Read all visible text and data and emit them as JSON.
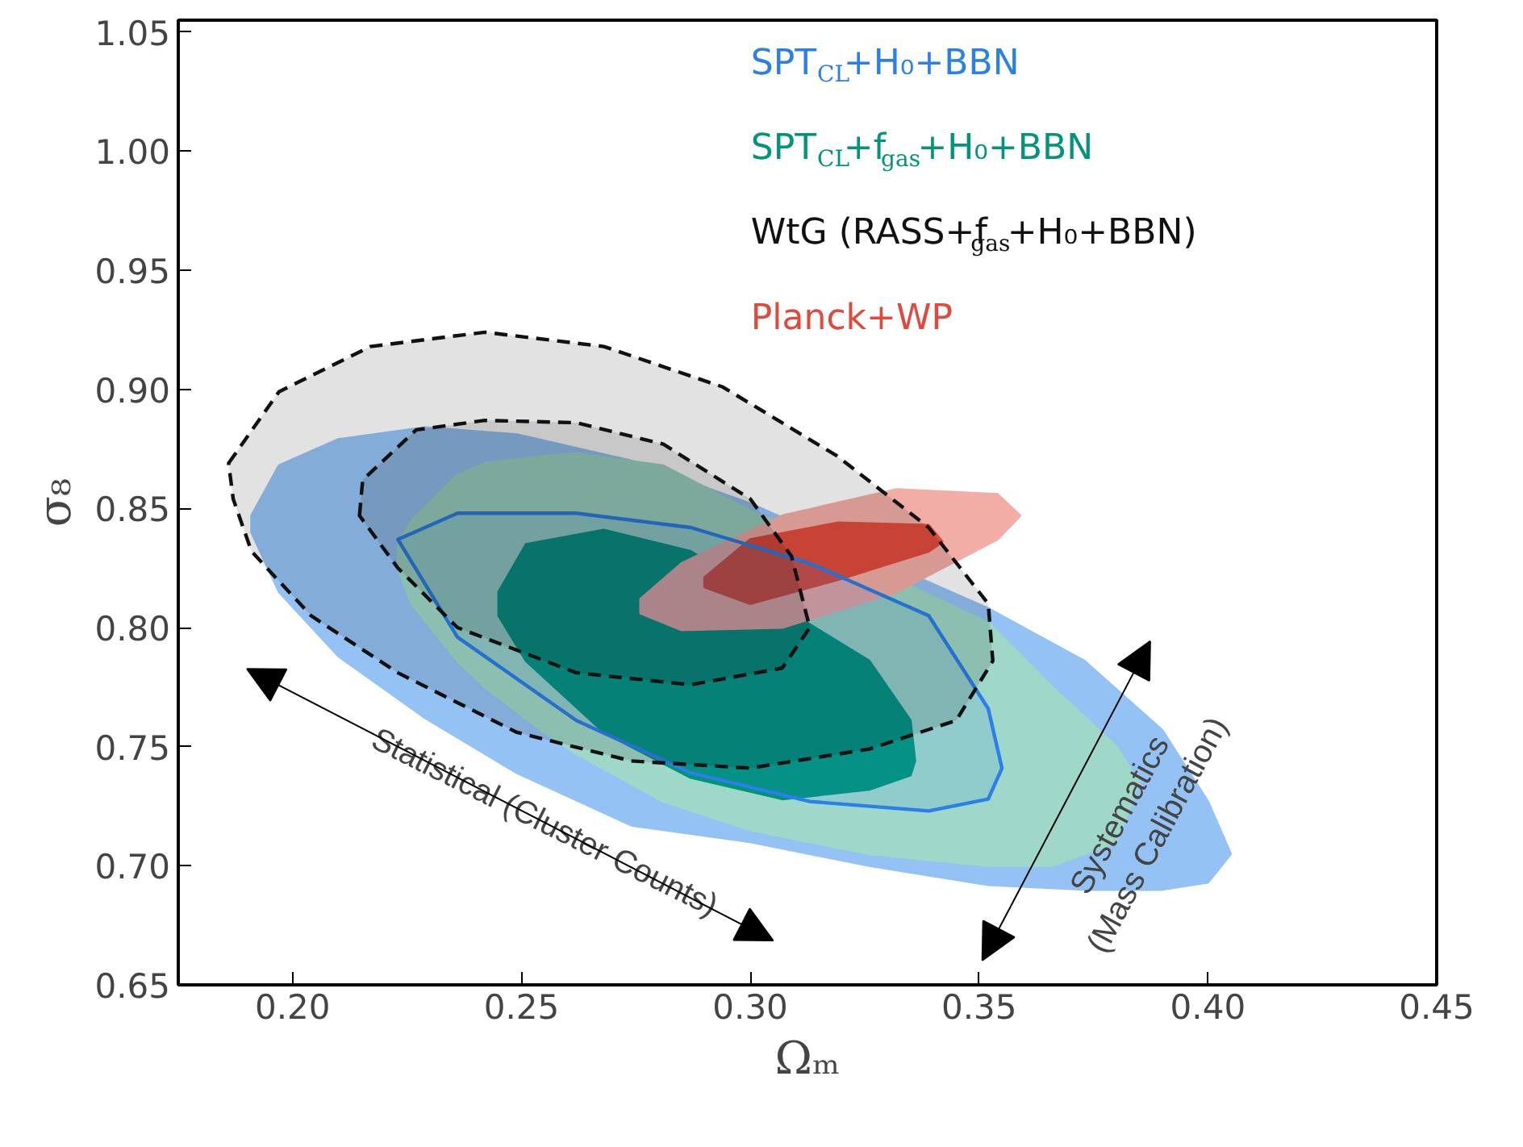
{
  "chart_data": {
    "type": "area",
    "xlabel": "Ωₘ",
    "ylabel": "σ₈",
    "xlim": [
      0.175,
      0.45
    ],
    "ylim": [
      0.65,
      1.055
    ],
    "xticks": [
      {
        "value": 0.2,
        "label": "0.20"
      },
      {
        "value": 0.25,
        "label": "0.25"
      },
      {
        "value": 0.3,
        "label": "0.30"
      },
      {
        "value": 0.35,
        "label": "0.35"
      },
      {
        "value": 0.4,
        "label": "0.40"
      },
      {
        "value": 0.45,
        "label": "0.45"
      }
    ],
    "yticks": [
      {
        "value": 0.65,
        "label": "0.65"
      },
      {
        "value": 0.7,
        "label": "0.70"
      },
      {
        "value": 0.75,
        "label": "0.75"
      },
      {
        "value": 0.8,
        "label": "0.80"
      },
      {
        "value": 0.85,
        "label": "0.85"
      },
      {
        "value": 0.9,
        "label": "0.90"
      },
      {
        "value": 0.95,
        "label": "0.95"
      },
      {
        "value": 1.0,
        "label": "1.00"
      },
      {
        "value": 1.05,
        "label": "1.05"
      }
    ],
    "grid": false,
    "legend": "top right",
    "series": [
      {
        "color": "#94c2f4",
        "x": [
          0.191,
          0.197,
          0.21,
          0.229,
          0.249,
          0.274,
          0.3,
          0.352,
          0.373,
          0.39,
          0.4,
          0.405,
          0.4,
          0.39,
          0.373,
          0.352,
          0.326,
          0.3,
          0.274,
          0.249,
          0.229,
          0.21,
          0.197,
          0.191
        ],
        "values": [
          0.847,
          0.868,
          0.879,
          0.884,
          0.881,
          0.87,
          0.852,
          0.808,
          0.786,
          0.757,
          0.727,
          0.705,
          0.693,
          0.69,
          0.69,
          0.692,
          0.7,
          0.71,
          0.717,
          0.739,
          0.762,
          0.788,
          0.815,
          0.84
        ]
      },
      {
        "color": "#9fd8c8",
        "x": [
          0.223,
          0.226,
          0.236,
          0.242,
          0.255,
          0.262,
          0.281,
          0.3,
          0.352,
          0.366,
          0.38,
          0.385,
          0.38,
          0.366,
          0.352,
          0.326,
          0.3,
          0.281,
          0.262,
          0.255,
          0.242,
          0.236,
          0.226,
          0.223
        ],
        "values": [
          0.835,
          0.845,
          0.864,
          0.869,
          0.872,
          0.873,
          0.868,
          0.849,
          0.802,
          0.775,
          0.75,
          0.735,
          0.71,
          0.7,
          0.7,
          0.705,
          0.715,
          0.727,
          0.747,
          0.756,
          0.775,
          0.786,
          0.81,
          0.825
        ]
      },
      {
        "name": "SPT$_{CL}$+H₀+BBN",
        "color": "#2a7fe8",
        "line_style": "solid",
        "x": [
          0.223,
          0.236,
          0.262,
          0.287,
          0.313,
          0.339,
          0.352,
          0.355,
          0.352,
          0.339,
          0.313,
          0.287,
          0.262,
          0.236,
          0.223
        ],
        "values": [
          0.837,
          0.848,
          0.848,
          0.842,
          0.827,
          0.805,
          0.766,
          0.741,
          0.728,
          0.723,
          0.727,
          0.739,
          0.761,
          0.796,
          0.837
        ]
      },
      {
        "name": "SPT$_{CL}$+f$_{gas}$+H₀+BBN",
        "color": "#009479",
        "x": [
          0.245,
          0.251,
          0.268,
          0.287,
          0.326,
          0.335,
          0.336,
          0.335,
          0.326,
          0.307,
          0.287,
          0.268,
          0.251,
          0.245
        ],
        "values": [
          0.815,
          0.835,
          0.841,
          0.832,
          0.786,
          0.761,
          0.744,
          0.738,
          0.732,
          0.728,
          0.737,
          0.756,
          0.786,
          0.805
        ]
      },
      {
        "name": "WtG (RASS+f$_{gas}$+H₀+BBN)",
        "color": "#111111",
        "line_style": "dashed",
        "x": [
          0.186,
          0.197,
          0.217,
          0.242,
          0.268,
          0.294,
          0.319,
          0.339,
          0.352,
          0.353,
          0.345,
          0.326,
          0.3,
          0.274,
          0.249,
          0.223,
          0.204,
          0.191,
          0.187,
          0.186
        ],
        "values": [
          0.869,
          0.899,
          0.918,
          0.924,
          0.918,
          0.901,
          0.872,
          0.842,
          0.81,
          0.786,
          0.761,
          0.749,
          0.741,
          0.744,
          0.756,
          0.781,
          0.805,
          0.832,
          0.854,
          0.869
        ]
      },
      {
        "color": "#111111",
        "line_style": "dashed",
        "x": [
          0.2146,
          0.2153,
          0.227,
          0.242,
          0.262,
          0.281,
          0.3,
          0.309,
          0.313,
          0.307,
          0.287,
          0.262,
          0.236,
          0.223,
          0.2146
        ],
        "values": [
          0.847,
          0.862,
          0.883,
          0.887,
          0.886,
          0.877,
          0.854,
          0.83,
          0.8,
          0.783,
          0.776,
          0.781,
          0.8,
          0.825,
          0.847
        ]
      },
      {
        "color": "#f2aea6",
        "x": [
          0.276,
          0.285,
          0.307,
          0.332,
          0.354,
          0.359,
          0.354,
          0.332,
          0.307,
          0.285,
          0.276
        ],
        "values": [
          0.812,
          0.827,
          0.847,
          0.858,
          0.856,
          0.847,
          0.837,
          0.815,
          0.8,
          0.799,
          0.806
        ]
      },
      {
        "name": "Planck+WP",
        "color": "#e04a3c",
        "x": [
          0.29,
          0.3,
          0.319,
          0.339,
          0.342,
          0.339,
          0.319,
          0.3,
          0.29
        ],
        "values": [
          0.821,
          0.837,
          0.844,
          0.843,
          0.836,
          0.832,
          0.82,
          0.81,
          0.817
        ]
      }
    ],
    "annotations": [
      "Statistical (Cluster Counts)",
      "Systematics\n(Mass Calibration)"
    ]
  }
}
